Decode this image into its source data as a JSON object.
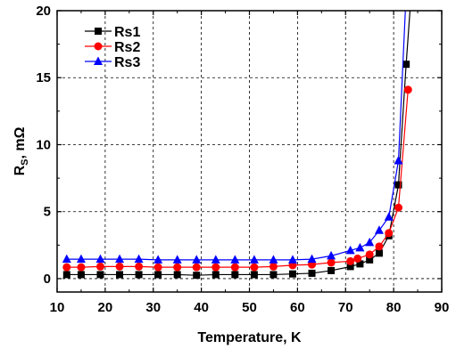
{
  "chart_data": {
    "type": "line",
    "xlabel": "Temperature, K",
    "ylabel_main": "R",
    "ylabel_sub": "S",
    "ylabel_rest": ", mΩ",
    "xlim": [
      10,
      90
    ],
    "ylim": [
      -1,
      20
    ],
    "xticks": [
      "10",
      "20",
      "30",
      "40",
      "50",
      "60",
      "70",
      "80",
      "90"
    ],
    "yticks": [
      "0",
      "5",
      "10",
      "15",
      "20"
    ],
    "grid": true,
    "legend_position": "top-left",
    "series": [
      {
        "name": "Rs1",
        "color": "#000000",
        "marker": "square",
        "x": [
          12,
          15,
          19,
          23,
          27,
          31,
          35,
          39,
          43,
          47,
          51,
          55,
          59,
          63,
          67,
          71,
          73,
          75,
          77,
          79,
          81,
          82.6,
          83.5
        ],
        "y": [
          0.3,
          0.3,
          0.3,
          0.3,
          0.3,
          0.3,
          0.3,
          0.25,
          0.3,
          0.3,
          0.3,
          0.3,
          0.35,
          0.4,
          0.6,
          0.9,
          1.1,
          1.4,
          1.9,
          3.2,
          7.0,
          16.0,
          20.5
        ]
      },
      {
        "name": "Rs2",
        "color": "#ff0000",
        "marker": "circle",
        "x": [
          12,
          15,
          19,
          23,
          27,
          31,
          35,
          39,
          43,
          47,
          51,
          55,
          59,
          63,
          67,
          71,
          72.5,
          75,
          77,
          79,
          81,
          83
        ],
        "y": [
          0.85,
          0.85,
          0.9,
          0.9,
          0.9,
          0.85,
          0.85,
          0.85,
          0.85,
          0.85,
          0.85,
          0.9,
          1.0,
          1.05,
          1.2,
          1.3,
          1.5,
          1.8,
          2.4,
          3.4,
          5.3,
          14.1
        ]
      },
      {
        "name": "Rs3",
        "color": "#0000ff",
        "marker": "triangle",
        "x": [
          12,
          15,
          19,
          23,
          27,
          31,
          35,
          39,
          43,
          47,
          51,
          55,
          59,
          63,
          67,
          71,
          73,
          75,
          77,
          79,
          81,
          82.5
        ],
        "y": [
          1.45,
          1.45,
          1.45,
          1.45,
          1.45,
          1.4,
          1.4,
          1.4,
          1.4,
          1.4,
          1.4,
          1.4,
          1.4,
          1.45,
          1.7,
          2.1,
          2.3,
          2.7,
          3.6,
          4.6,
          8.8,
          20.5
        ]
      }
    ]
  }
}
